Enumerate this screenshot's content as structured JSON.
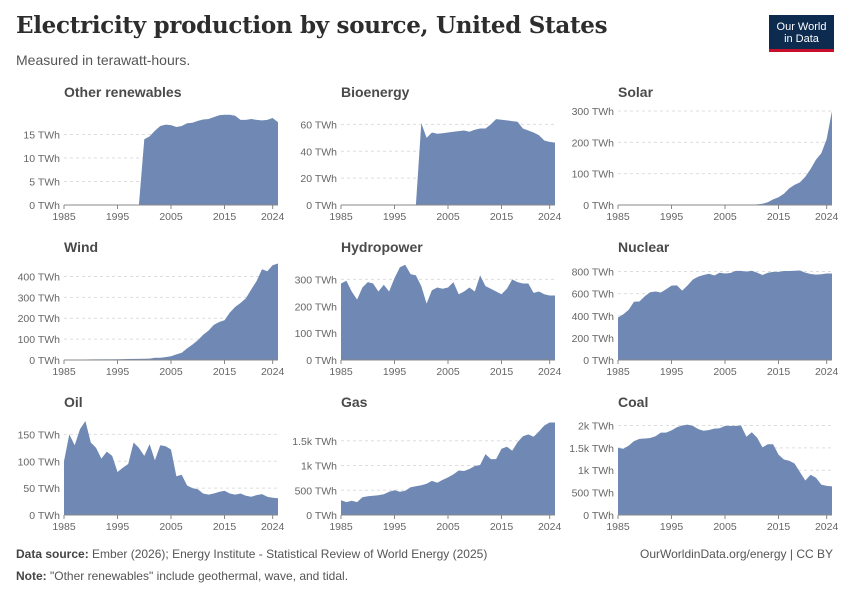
{
  "header": {
    "title": "Electricity production by source, United States",
    "subtitle": "Measured in terawatt-hours."
  },
  "logo": {
    "line1": "Our World",
    "line2": "in Data"
  },
  "footer": {
    "source_label": "Data source:",
    "source_text": " Ember (2026); Energy Institute - Statistical Review of World Energy (2025)",
    "credit": "OurWorldinData.org/energy | CC BY",
    "note_label": "Note:",
    "note_text": " \"Other renewables\" include geothermal, wave, and tidal."
  },
  "colors": {
    "fill": "#6f89b4",
    "grid": "#dddddd",
    "axis": "#888888"
  },
  "chart_data": [
    {
      "type": "area",
      "title": "Other renewables",
      "ylim": [
        0,
        20
      ],
      "yticks": [
        0,
        5,
        10,
        15
      ],
      "ytick_labels": [
        "0 TWh",
        "5 TWh",
        "10 TWh",
        "15 TWh"
      ],
      "xlim": [
        1985,
        2025
      ],
      "xticks": [
        1985,
        1995,
        2005,
        2015,
        2024
      ],
      "x": [
        1985,
        1999,
        2000,
        2001,
        2002,
        2003,
        2004,
        2005,
        2006,
        2007,
        2008,
        2009,
        2010,
        2011,
        2012,
        2013,
        2014,
        2015,
        2016,
        2017,
        2018,
        2019,
        2020,
        2021,
        2022,
        2023,
        2024,
        2025
      ],
      "y": [
        0,
        0,
        14,
        14.6,
        15.8,
        16.8,
        17.1,
        17.0,
        16.6,
        16.8,
        17.4,
        17.5,
        17.9,
        18.2,
        18.3,
        18.7,
        19.1,
        19.2,
        19.2,
        19.0,
        18.1,
        18.1,
        18.3,
        18.1,
        18.0,
        18.1,
        18.5,
        17.6
      ]
    },
    {
      "type": "area",
      "title": "Bioenergy",
      "ylim": [
        0,
        70
      ],
      "yticks": [
        0,
        20,
        40,
        60
      ],
      "ytick_labels": [
        "0 TWh",
        "20 TWh",
        "40 TWh",
        "60 TWh"
      ],
      "xlim": [
        1985,
        2025
      ],
      "xticks": [
        1985,
        1995,
        2005,
        2015,
        2024
      ],
      "x": [
        1985,
        1999,
        2000,
        2001,
        2002,
        2003,
        2004,
        2005,
        2006,
        2007,
        2008,
        2009,
        2010,
        2011,
        2012,
        2013,
        2014,
        2015,
        2016,
        2017,
        2018,
        2019,
        2020,
        2021,
        2022,
        2023,
        2024,
        2025
      ],
      "y": [
        0,
        0,
        61,
        50,
        54,
        53,
        53.5,
        54,
        54.5,
        55,
        55.5,
        54.5,
        56,
        57,
        57,
        60,
        64,
        63.5,
        63,
        62.5,
        62,
        57,
        55.5,
        54,
        52,
        48,
        47,
        46.5
      ]
    },
    {
      "type": "area",
      "title": "Solar",
      "ylim": [
        0,
        300
      ],
      "yticks": [
        0,
        100,
        200,
        300
      ],
      "ytick_labels": [
        "0 TWh",
        "100 TWh",
        "200 TWh",
        "300 TWh"
      ],
      "xlim": [
        1985,
        2025
      ],
      "xticks": [
        1985,
        1995,
        2005,
        2015,
        2024
      ],
      "x": [
        1985,
        2005,
        2008,
        2010,
        2011,
        2012,
        2013,
        2014,
        2015,
        2016,
        2017,
        2018,
        2019,
        2020,
        2021,
        2022,
        2023,
        2024,
        2025
      ],
      "y": [
        0,
        0.5,
        1,
        1.2,
        2,
        4,
        9,
        18,
        25,
        36,
        53,
        64,
        72,
        90,
        115,
        145,
        165,
        210,
        300
      ]
    },
    {
      "type": "area",
      "title": "Wind",
      "ylim": [
        0,
        450
      ],
      "yticks": [
        0,
        100,
        200,
        300,
        400
      ],
      "ytick_labels": [
        "0 TWh",
        "100 TWh",
        "200 TWh",
        "300 TWh",
        "400 TWh"
      ],
      "xlim": [
        1985,
        2025
      ],
      "xticks": [
        1985,
        1995,
        2005,
        2015,
        2024
      ],
      "x": [
        1985,
        1990,
        1995,
        2000,
        2001,
        2002,
        2003,
        2004,
        2005,
        2006,
        2007,
        2008,
        2009,
        2010,
        2011,
        2012,
        2013,
        2014,
        2015,
        2016,
        2017,
        2018,
        2019,
        2020,
        2021,
        2022,
        2023,
        2024,
        2025
      ],
      "y": [
        0,
        3,
        4,
        5.6,
        6.7,
        10.4,
        11.2,
        14.1,
        17.8,
        26.6,
        34.5,
        55.4,
        73.9,
        94.7,
        120.2,
        140.8,
        167.8,
        181.7,
        190.7,
        226.9,
        254.3,
        272.7,
        295.9,
        337.9,
        378.2,
        434.3,
        425.2,
        453.5,
        462
      ]
    },
    {
      "type": "area",
      "title": "Hydropower",
      "ylim": [
        0,
        350
      ],
      "yticks": [
        0,
        100,
        200,
        300
      ],
      "ytick_labels": [
        "0 TWh",
        "100 TWh",
        "200 TWh",
        "300 TWh"
      ],
      "xlim": [
        1985,
        2025
      ],
      "xticks": [
        1985,
        1995,
        2005,
        2015,
        2024
      ],
      "x": [
        1985,
        1986,
        1987,
        1988,
        1989,
        1990,
        1991,
        1992,
        1993,
        1994,
        1995,
        1996,
        1997,
        1998,
        1999,
        2000,
        2001,
        2002,
        2003,
        2004,
        2005,
        2006,
        2007,
        2008,
        2009,
        2010,
        2011,
        2012,
        2013,
        2014,
        2015,
        2016,
        2017,
        2018,
        2019,
        2020,
        2021,
        2022,
        2023,
        2024,
        2025
      ],
      "y": [
        285,
        295,
        255,
        225,
        270,
        290,
        285,
        255,
        280,
        255,
        305,
        345,
        355,
        320,
        315,
        275,
        210,
        260,
        270,
        265,
        270,
        290,
        245,
        255,
        270,
        255,
        315,
        275,
        265,
        255,
        245,
        265,
        300,
        290,
        285,
        285,
        250,
        255,
        245,
        240,
        240
      ]
    },
    {
      "type": "area",
      "title": "Nuclear",
      "ylim": [
        0,
        850
      ],
      "yticks": [
        0,
        200,
        400,
        600,
        800
      ],
      "ytick_labels": [
        "0 TWh",
        "200 TWh",
        "400 TWh",
        "600 TWh",
        "800 TWh"
      ],
      "xlim": [
        1985,
        2025
      ],
      "xticks": [
        1985,
        1995,
        2005,
        2015,
        2024
      ],
      "x": [
        1985,
        1986,
        1987,
        1988,
        1989,
        1990,
        1991,
        1992,
        1993,
        1994,
        1995,
        1996,
        1997,
        1998,
        1999,
        2000,
        2001,
        2002,
        2003,
        2004,
        2005,
        2006,
        2007,
        2008,
        2009,
        2010,
        2011,
        2012,
        2013,
        2014,
        2015,
        2016,
        2017,
        2018,
        2019,
        2020,
        2021,
        2022,
        2023,
        2024,
        2025
      ],
      "y": [
        384,
        414,
        455,
        527,
        529,
        577,
        613,
        619,
        610,
        640,
        673,
        675,
        628,
        674,
        728,
        754,
        769,
        780,
        764,
        789,
        782,
        787,
        806,
        806,
        799,
        807,
        790,
        769,
        789,
        797,
        797,
        805,
        805,
        807,
        809,
        790,
        778,
        772,
        775,
        782,
        782
      ]
    },
    {
      "type": "area",
      "title": "Oil",
      "ylim": [
        0,
        175
      ],
      "yticks": [
        0,
        50,
        100,
        150
      ],
      "ytick_labels": [
        "0 TWh",
        "50 TWh",
        "100 TWh",
        "150 TWh"
      ],
      "xlim": [
        1985,
        2025
      ],
      "xticks": [
        1985,
        1995,
        2005,
        2015,
        2024
      ],
      "x": [
        1985,
        1986,
        1987,
        1988,
        1989,
        1990,
        1991,
        1992,
        1993,
        1994,
        1995,
        1996,
        1997,
        1998,
        1999,
        2000,
        2001,
        2002,
        2003,
        2004,
        2005,
        2006,
        2007,
        2008,
        2009,
        2010,
        2011,
        2012,
        2013,
        2014,
        2015,
        2016,
        2017,
        2018,
        2019,
        2020,
        2021,
        2022,
        2023,
        2024,
        2025
      ],
      "y": [
        100,
        150,
        130,
        160,
        175,
        135,
        125,
        105,
        118,
        110,
        80,
        88,
        95,
        135,
        125,
        110,
        132,
        102,
        130,
        128,
        122,
        72,
        75,
        55,
        50,
        48,
        40,
        38,
        40,
        43,
        45,
        40,
        38,
        40,
        36,
        34,
        37,
        39,
        34,
        32,
        31
      ]
    },
    {
      "type": "area",
      "title": "Gas",
      "ylim": [
        0,
        1900
      ],
      "yticks": [
        0,
        500,
        1000,
        1500
      ],
      "ytick_labels": [
        "0 TWh",
        "500 TWh",
        "1k TWh",
        "1.5k TWh"
      ],
      "xlim": [
        1985,
        2025
      ],
      "xticks": [
        1985,
        1995,
        2005,
        2015,
        2024
      ],
      "x": [
        1985,
        1986,
        1987,
        1988,
        1989,
        1990,
        1991,
        1992,
        1993,
        1994,
        1995,
        1996,
        1997,
        1998,
        1999,
        2000,
        2001,
        2002,
        2003,
        2004,
        2005,
        2006,
        2007,
        2008,
        2009,
        2010,
        2011,
        2012,
        2013,
        2014,
        2015,
        2016,
        2017,
        2018,
        2019,
        2020,
        2021,
        2022,
        2023,
        2024,
        2025
      ],
      "y": [
        300,
        260,
        290,
        260,
        360,
        380,
        390,
        400,
        420,
        470,
        500,
        470,
        490,
        560,
        580,
        600,
        630,
        690,
        650,
        710,
        760,
        820,
        900,
        890,
        930,
        990,
        1010,
        1230,
        1130,
        1130,
        1340,
        1380,
        1300,
        1470,
        1590,
        1630,
        1580,
        1690,
        1810,
        1870,
        1870
      ]
    },
    {
      "type": "area",
      "title": "Coal",
      "ylim": [
        0,
        2100
      ],
      "yticks": [
        0,
        500,
        1000,
        1500,
        2000
      ],
      "ytick_labels": [
        "0 TWh",
        "500 TWh",
        "1k TWh",
        "1.5k TWh",
        "2k TWh"
      ],
      "xlim": [
        1985,
        2025
      ],
      "xticks": [
        1985,
        1995,
        2005,
        2015,
        2024
      ],
      "x": [
        1985,
        1986,
        1987,
        1988,
        1989,
        1990,
        1991,
        1992,
        1993,
        1994,
        1995,
        1996,
        1997,
        1998,
        1999,
        2000,
        2001,
        2002,
        2003,
        2004,
        2005,
        2006,
        2007,
        2008,
        2009,
        2010,
        2011,
        2012,
        2013,
        2014,
        2015,
        2016,
        2017,
        2018,
        2019,
        2020,
        2021,
        2022,
        2023,
        2024,
        2025
      ],
      "y": [
        1500,
        1480,
        1550,
        1650,
        1700,
        1710,
        1720,
        1760,
        1840,
        1840,
        1890,
        1960,
        2000,
        2020,
        1990,
        1920,
        1880,
        1900,
        1930,
        1940,
        1990,
        1990,
        1990,
        2000,
        1750,
        1850,
        1730,
        1510,
        1580,
        1580,
        1350,
        1240,
        1210,
        1150,
        960,
        770,
        900,
        830,
        680,
        650,
        640
      ]
    }
  ]
}
